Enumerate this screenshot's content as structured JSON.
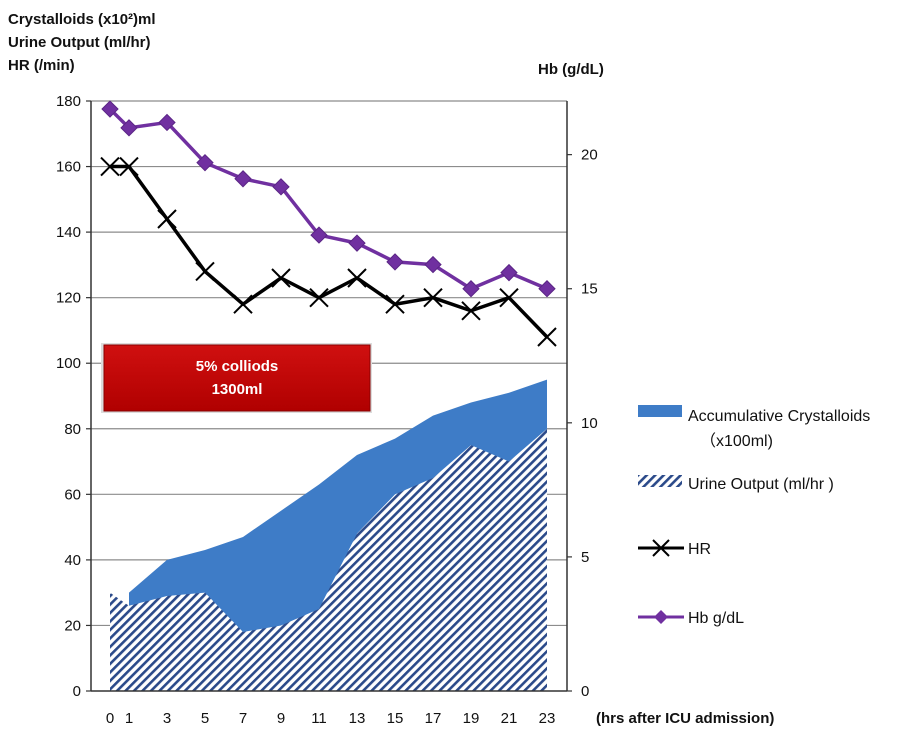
{
  "chart_data": {
    "type": "line",
    "left_axis_title_lines": [
      "Crystalloids (x10²)ml",
      "Urine Output  (ml/hr)",
      "HR (/min)"
    ],
    "right_axis_title": "Hb (g/dL)",
    "xlabel": "(hrs after ICU admission)",
    "x_ticks": [
      0,
      1,
      3,
      5,
      7,
      9,
      11,
      13,
      15,
      17,
      19,
      21,
      23
    ],
    "x_positions_hours": [
      0,
      1,
      3,
      5,
      7,
      9,
      11,
      13,
      15,
      17,
      19,
      21,
      23
    ],
    "ylim_left": [
      0,
      180
    ],
    "yticks_left": [
      0,
      20,
      40,
      60,
      80,
      100,
      120,
      140,
      160,
      180
    ],
    "ylim_right": [
      0,
      22
    ],
    "yticks_right": [
      0,
      5,
      10,
      15,
      20
    ],
    "grid": "horizontal",
    "legend_placement": "right",
    "annotation": {
      "lines": [
        "5% colliods",
        "1300ml"
      ],
      "color": "#c00000"
    },
    "series": [
      {
        "name": "Accumulative Crystalloids",
        "legend_lines": [
          "Accumulative Crystalloids",
          "（x100ml)"
        ],
        "kind": "area",
        "axis": "left",
        "color": "#3e7cc7",
        "x": [
          1,
          3,
          5,
          7,
          9,
          11,
          13,
          15,
          17,
          19,
          21,
          23
        ],
        "values": [
          30,
          40,
          43,
          47,
          55,
          63,
          72,
          77,
          84,
          88,
          91,
          95
        ]
      },
      {
        "name": "Urine Output (ml/hr )",
        "kind": "hatched-area",
        "axis": "left",
        "color": "#2b4a8a",
        "x": [
          0,
          1,
          3,
          5,
          7,
          9,
          11,
          13,
          15,
          17,
          19,
          21,
          23
        ],
        "values": [
          30,
          26,
          29,
          30,
          18,
          20,
          25,
          48,
          60,
          65,
          75,
          70,
          80
        ]
      },
      {
        "name": "HR",
        "kind": "line",
        "marker": "x",
        "axis": "left",
        "color": "#000000",
        "x": [
          0,
          1,
          3,
          5,
          7,
          9,
          11,
          13,
          15,
          17,
          19,
          21,
          23
        ],
        "values": [
          160,
          160,
          144,
          128,
          118,
          126,
          120,
          126,
          118,
          120,
          116,
          120,
          108
        ]
      },
      {
        "name": "Hb g/dL",
        "kind": "line",
        "marker": "diamond",
        "axis": "right",
        "color": "#7030a0",
        "x": [
          0,
          1,
          3,
          5,
          7,
          9,
          11,
          13,
          15,
          17,
          19,
          21,
          23
        ],
        "values": [
          21.7,
          21.0,
          21.2,
          19.7,
          19.1,
          18.8,
          17.0,
          16.7,
          16.0,
          15.9,
          15.0,
          15.6,
          15.0
        ]
      }
    ]
  }
}
